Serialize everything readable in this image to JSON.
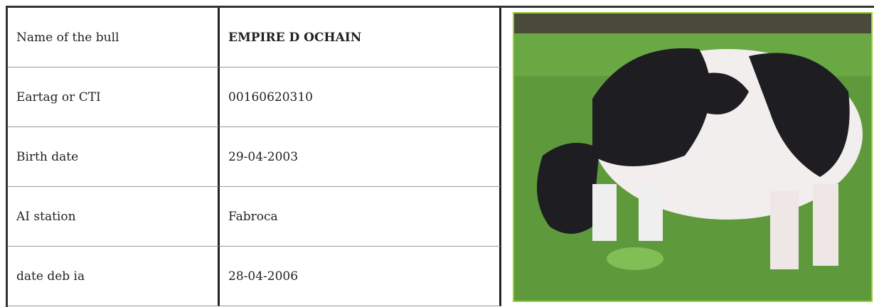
{
  "table": {
    "rows": [
      [
        "Name of the bull",
        "EMPIRE D OCHAIN"
      ],
      [
        "Eartag or CTI",
        "00160620310"
      ],
      [
        "Birth date",
        "29-04-2003"
      ],
      [
        "AI station",
        "Fabroca"
      ],
      [
        "date deb ia",
        "28-04-2006"
      ]
    ]
  }
}
